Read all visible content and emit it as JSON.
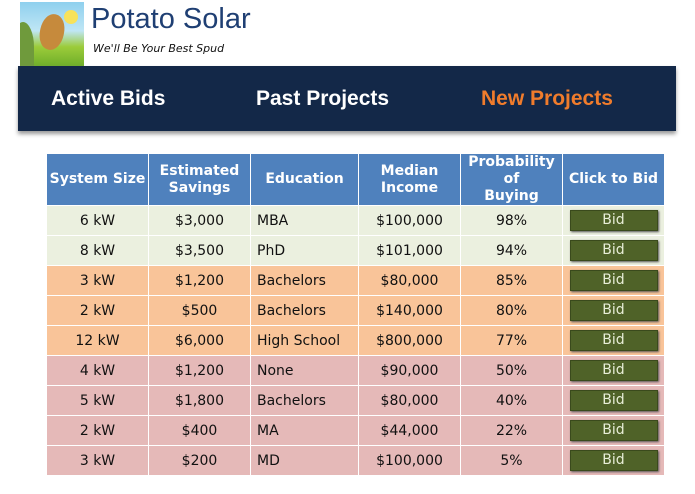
{
  "brand": {
    "name": "Potato Solar",
    "tagline": "We'll Be Your Best Spud"
  },
  "nav": [
    {
      "label": "Active Bids",
      "color": "#ffffff"
    },
    {
      "label": "Past Projects",
      "color": "#ffffff"
    },
    {
      "label": "New Projects",
      "color": "#f07c2c"
    }
  ],
  "table": {
    "headers": [
      "System Size",
      "Estimated Savings",
      "Education",
      "Median Income",
      "Probability of Buying",
      "Click to Bid"
    ],
    "rows": [
      {
        "size": "6 kW",
        "savings": "$3,000",
        "education": "MBA",
        "income": "$100,000",
        "probability": "98%",
        "bid": "Bid",
        "tier": "g"
      },
      {
        "size": "8 kW",
        "savings": "$3,500",
        "education": "PhD",
        "income": "$101,000",
        "probability": "94%",
        "bid": "Bid",
        "tier": "g"
      },
      {
        "size": "3 kW",
        "savings": "$1,200",
        "education": "Bachelors",
        "income": "$80,000",
        "probability": "85%",
        "bid": "Bid",
        "tier": "o"
      },
      {
        "size": "2 kW",
        "savings": "$500",
        "education": "Bachelors",
        "income": "$140,000",
        "probability": "80%",
        "bid": "Bid",
        "tier": "o"
      },
      {
        "size": "12 kW",
        "savings": "$6,000",
        "education": "High School",
        "income": "$800,000",
        "probability": "77%",
        "bid": "Bid",
        "tier": "o"
      },
      {
        "size": "4 kW",
        "savings": "$1,200",
        "education": "None",
        "income": "$90,000",
        "probability": "50%",
        "bid": "Bid",
        "tier": "p"
      },
      {
        "size": "5 kW",
        "savings": "$1,800",
        "education": "Bachelors",
        "income": "$80,000",
        "probability": "40%",
        "bid": "Bid",
        "tier": "p"
      },
      {
        "size": "2 kW",
        "savings": "$400",
        "education": "MA",
        "income": "$44,000",
        "probability": "22%",
        "bid": "Bid",
        "tier": "p"
      },
      {
        "size": "3 kW",
        "savings": "$200",
        "education": "MD",
        "income": "$100,000",
        "probability": "5%",
        "bid": "Bid",
        "tier": "p"
      }
    ]
  }
}
